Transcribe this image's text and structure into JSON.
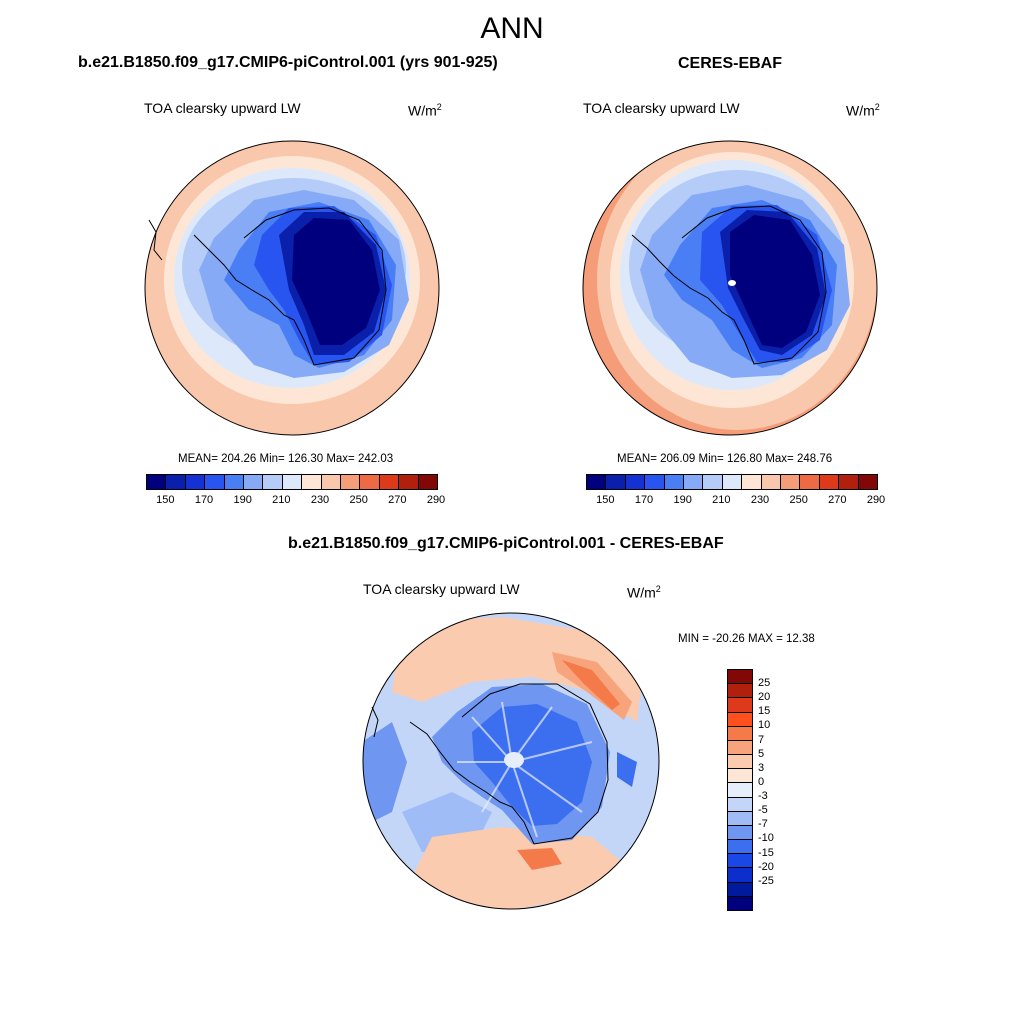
{
  "season": "ANN",
  "panels": [
    {
      "title": "b.e21.B1850.f09_g17.CMIP6-piControl.001 (yrs 901-925)",
      "variable": "TOA clearsky upward LW",
      "units_base": "W/m",
      "units_exp": "2",
      "stats": "MEAN= 204.26  Min= 126.30  Max= 242.03",
      "colorbar_labels": [
        "150",
        "170",
        "190",
        "210",
        "230",
        "250",
        "270",
        "290"
      ]
    },
    {
      "title": "CERES-EBAF",
      "variable": "TOA clearsky upward LW",
      "units_base": "W/m",
      "units_exp": "2",
      "stats": "MEAN= 206.09  Min= 126.80  Max= 248.76",
      "colorbar_labels": [
        "150",
        "170",
        "190",
        "210",
        "230",
        "250",
        "270",
        "290"
      ]
    },
    {
      "title": "b.e21.B1850.f09_g17.CMIP6-piControl.001 - CERES-EBAF",
      "variable": "TOA clearsky upward LW",
      "units_base": "W/m",
      "units_exp": "2",
      "stats": "MIN = -20.26 MAX =  12.38",
      "colorbar_labels": [
        "25",
        "20",
        "15",
        "10",
        "7",
        "5",
        "3",
        "0",
        "-3",
        "-5",
        "-7",
        "-10",
        "-15",
        "-20",
        "-25"
      ]
    }
  ],
  "colors": {
    "abs_scale": [
      "#00007f",
      "#0a1faa",
      "#1432d2",
      "#2855f0",
      "#4a7ef5",
      "#86aaf5",
      "#b4ccf7",
      "#dde9fb",
      "#fde6d6",
      "#f9c7ab",
      "#f59c78",
      "#ee6a44",
      "#dc3a1a",
      "#b0200c",
      "#820808"
    ],
    "diff_scale": [
      "#820808",
      "#b0200c",
      "#dc3a1a",
      "#ff4f1d",
      "#f57a4a",
      "#f7a47c",
      "#fbcbb0",
      "#fde6d6",
      "#e6eefc",
      "#c3d6f8",
      "#9fbcf6",
      "#6f97f2",
      "#3c6ef0",
      "#1a48e6",
      "#0c2ecd",
      "#001a9e",
      "#00007f"
    ]
  }
}
